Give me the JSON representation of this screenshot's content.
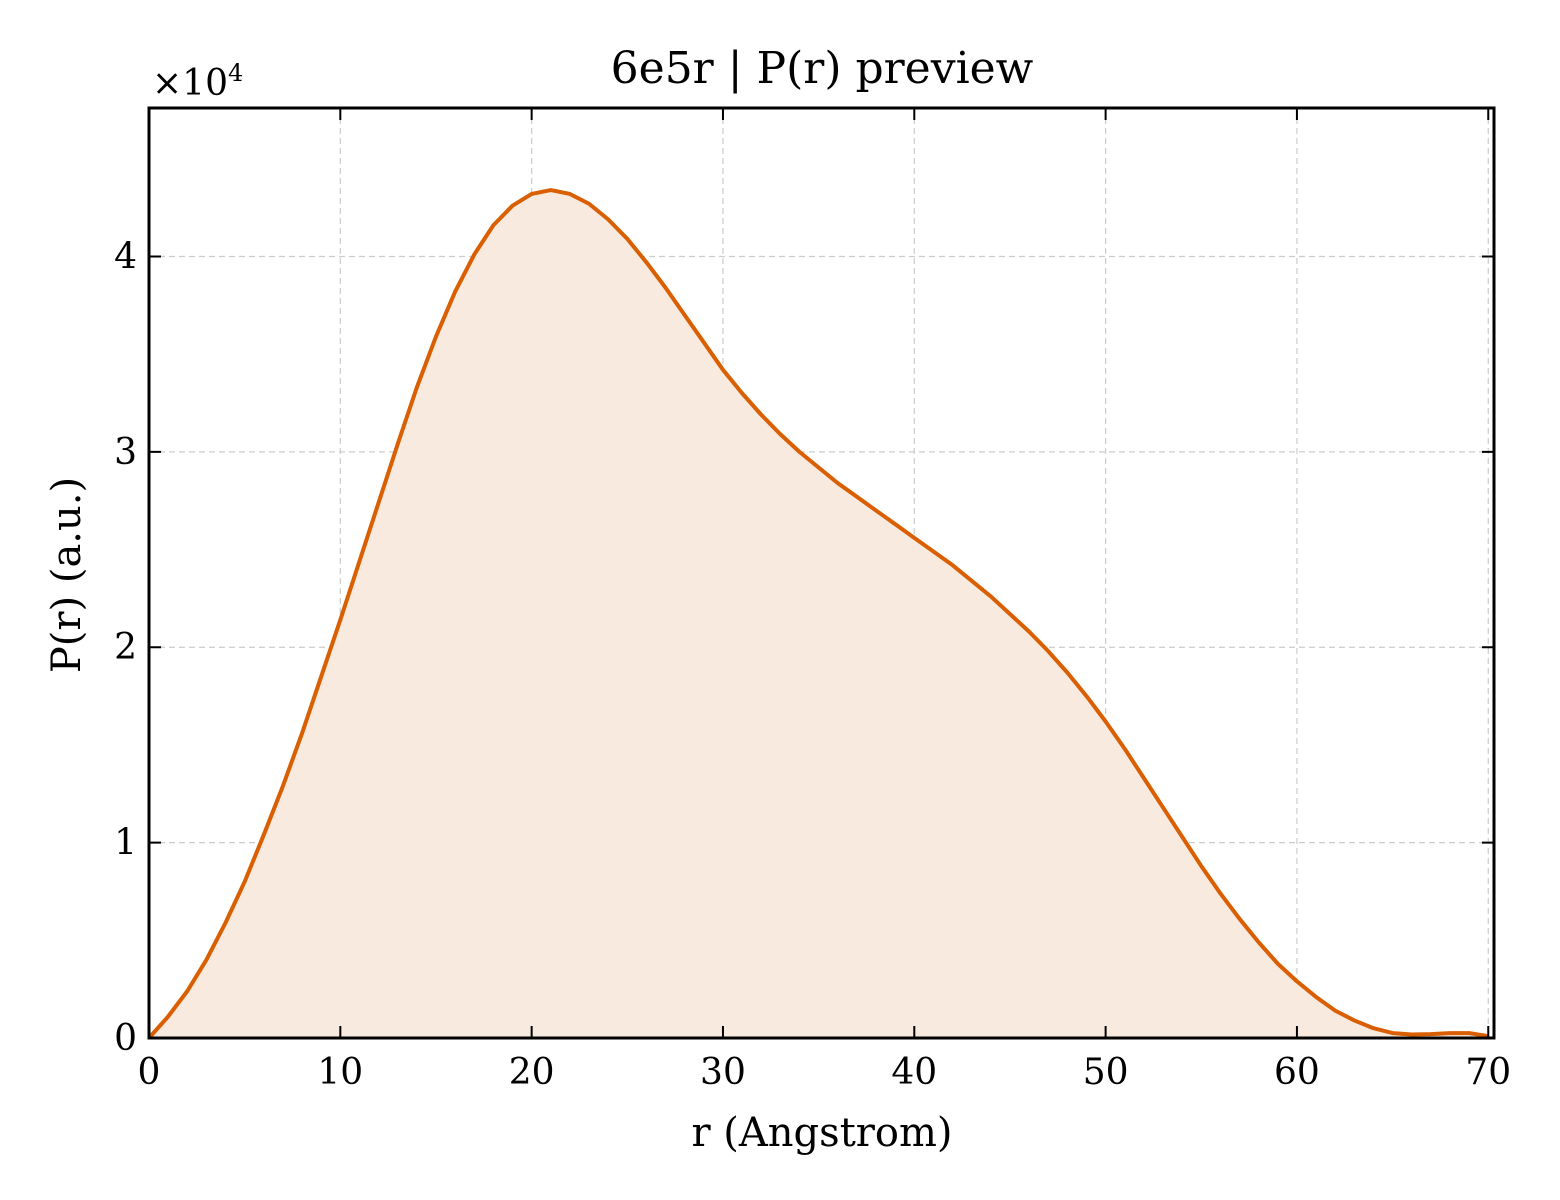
{
  "chart_data": {
    "type": "area",
    "title": "6e5r | P(r) preview",
    "xlabel": "r (Angstrom)",
    "ylabel": "P(r) (a.u.)",
    "y_multiplier": "×10",
    "y_multiplier_exponent": "4",
    "xlim": [
      0,
      70.3
    ],
    "ylim": [
      0,
      47600
    ],
    "x_ticks": [
      0,
      10,
      20,
      30,
      40,
      50,
      60,
      70
    ],
    "x_tick_labels": [
      "0",
      "10",
      "20",
      "30",
      "40",
      "50",
      "60",
      "70"
    ],
    "y_ticks": [
      0,
      10000,
      20000,
      30000,
      40000
    ],
    "y_tick_labels": [
      "0",
      "1",
      "2",
      "3",
      "4"
    ],
    "grid": true,
    "line_color": "#d95f02",
    "fill_color": "#f9eadf",
    "series": [
      {
        "x": [
          0,
          1,
          2,
          3,
          4,
          5,
          6,
          7,
          8,
          9,
          10,
          11,
          12,
          13,
          14,
          15,
          16,
          17,
          18,
          19,
          20,
          21,
          22,
          23,
          24,
          25,
          26,
          27,
          28,
          29,
          30,
          31,
          32,
          33,
          34,
          35,
          36,
          37,
          38,
          39,
          40,
          41,
          42,
          43,
          44,
          45,
          46,
          47,
          48,
          49,
          50,
          51,
          52,
          53,
          54,
          55,
          56,
          57,
          58,
          59,
          60,
          61,
          62,
          63,
          64,
          65,
          66,
          67,
          68,
          69,
          70
        ],
        "y": [
          0,
          1100,
          2400,
          4000,
          5900,
          8000,
          10400,
          12900,
          15600,
          18500,
          21400,
          24400,
          27400,
          30400,
          33300,
          35900,
          38200,
          40100,
          41600,
          42600,
          43200,
          43400,
          43200,
          42700,
          41900,
          40900,
          39700,
          38400,
          37000,
          35600,
          34200,
          33000,
          31900,
          30900,
          30000,
          29200,
          28400,
          27700,
          27000,
          26300,
          25600,
          24900,
          24200,
          23400,
          22600,
          21700,
          20800,
          19800,
          18700,
          17500,
          16200,
          14800,
          13300,
          11800,
          10300,
          8800,
          7400,
          6100,
          4900,
          3800,
          2900,
          2100,
          1400,
          900,
          500,
          250,
          180,
          200,
          250,
          250,
          100
        ]
      }
    ]
  }
}
